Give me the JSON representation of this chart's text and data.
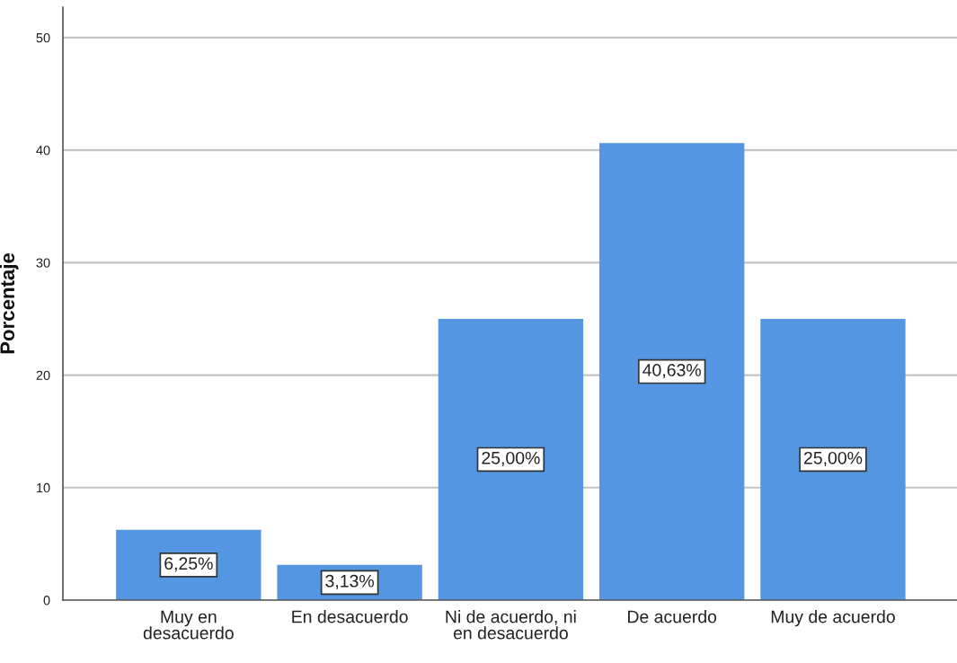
{
  "chart_data": {
    "type": "bar",
    "ylabel": "Porcentaje",
    "categories": [
      "Muy en\ndesacuerdo",
      "En desacuerdo",
      "Ni de acuerdo, ni\nen desacuerdo",
      "De acuerdo",
      "Muy de acuerdo"
    ],
    "values": [
      6.25,
      3.13,
      25.0,
      40.63,
      25.0
    ],
    "value_labels": [
      "6,25%",
      "3,13%",
      "25,00%",
      "40,63%",
      "25,00%"
    ],
    "color": "#5596e2",
    "ylim": [
      0,
      52.7
    ],
    "yticks": [
      0,
      10,
      20,
      30,
      40,
      50
    ],
    "grid": "y"
  }
}
